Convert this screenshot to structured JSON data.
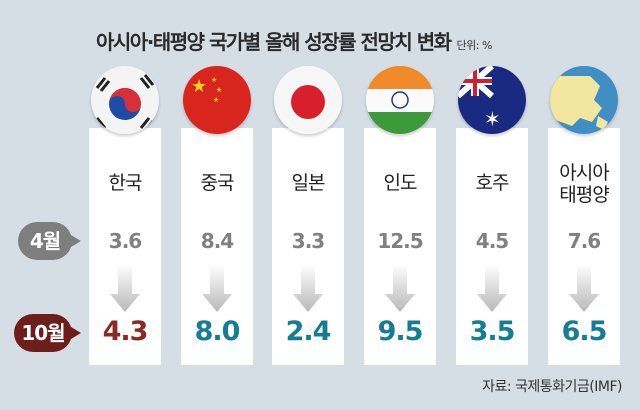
{
  "title": "아시아·태평양 국가별 올해 성장률 전망치 변화",
  "unit": "단위: %",
  "source": "자료: 국제통화기금(IMF)",
  "row_labels": {
    "april": "4월",
    "october": "10월"
  },
  "colors": {
    "background": "#d6dee5",
    "october_decrease_highlight": "#8b2a22",
    "october_value": "#137d93",
    "april_value": "#808080"
  },
  "chart_data": {
    "type": "table",
    "title": "아시아·태평양 국가별 올해 성장률 전망치 변화",
    "unit": "%",
    "categories": [
      "한국",
      "중국",
      "일본",
      "인도",
      "호주",
      "아시아 태평양"
    ],
    "series": [
      {
        "name": "4월",
        "values": [
          "3.6",
          "8.4",
          "3.3",
          "12.5",
          "4.5",
          "7.6"
        ]
      },
      {
        "name": "10월",
        "values": [
          "4.3",
          "8.0",
          "2.4",
          "9.5",
          "3.5",
          "6.5"
        ]
      }
    ]
  },
  "countries": [
    {
      "name": "한국",
      "flag": "korea-flag-icon",
      "april": "3.6",
      "october": "4.3"
    },
    {
      "name": "중국",
      "flag": "china-flag-icon",
      "april": "8.4",
      "october": "8.0"
    },
    {
      "name": "일본",
      "flag": "japan-flag-icon",
      "april": "3.3",
      "october": "2.4"
    },
    {
      "name": "인도",
      "flag": "india-flag-icon",
      "april": "12.5",
      "october": "9.5"
    },
    {
      "name": "호주",
      "flag": "australia-flag-icon",
      "april": "4.5",
      "october": "3.5"
    },
    {
      "name": "아시아\n태평양",
      "flag": "globe-icon",
      "april": "7.6",
      "october": "6.5"
    }
  ]
}
